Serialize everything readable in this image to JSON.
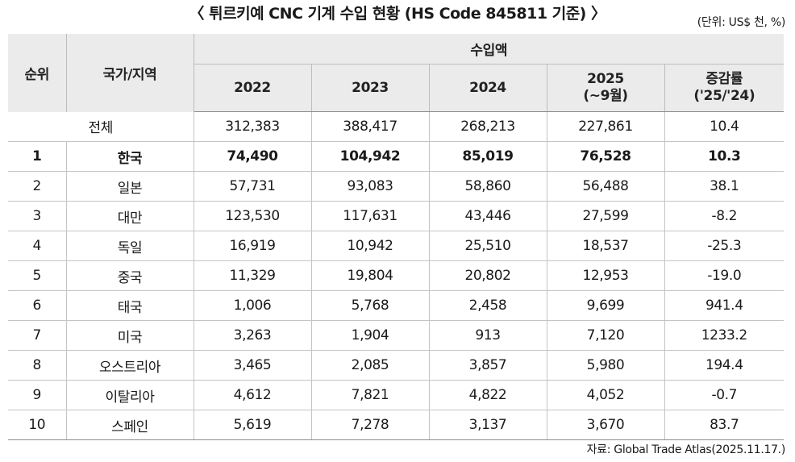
{
  "title": "〈 튀르키예 CNC 기계 수입 현황 (HS Code 845811 기준) 〉",
  "unit": "(단위: US$ 천, %)",
  "headers": {
    "rank": "순위",
    "country": "국가/지역",
    "import_value": "수입액",
    "y2022": "2022",
    "y2023": "2023",
    "y2024": "2024",
    "y2025_line1": "2025",
    "y2025_line2": "(~9월)",
    "growth_line1": "증감률",
    "growth_line2": "('25/'24)"
  },
  "total": {
    "label": "전체",
    "y2022": "312,383",
    "y2023": "388,417",
    "y2024": "268,213",
    "y2025": "227,861",
    "growth": "10.4"
  },
  "rows": [
    {
      "rank": "1",
      "country": "한국",
      "y2022": "74,490",
      "y2023": "104,942",
      "y2024": "85,019",
      "y2025": "76,528",
      "growth": "10.3"
    },
    {
      "rank": "2",
      "country": "일본",
      "y2022": "57,731",
      "y2023": "93,083",
      "y2024": "58,860",
      "y2025": "56,488",
      "growth": "38.1"
    },
    {
      "rank": "3",
      "country": "대만",
      "y2022": "123,530",
      "y2023": "117,631",
      "y2024": "43,446",
      "y2025": "27,599",
      "growth": "-8.2"
    },
    {
      "rank": "4",
      "country": "독일",
      "y2022": "16,919",
      "y2023": "10,942",
      "y2024": "25,510",
      "y2025": "18,537",
      "growth": "-25.3"
    },
    {
      "rank": "5",
      "country": "중국",
      "y2022": "11,329",
      "y2023": "19,804",
      "y2024": "20,802",
      "y2025": "12,953",
      "growth": "-19.0"
    },
    {
      "rank": "6",
      "country": "태국",
      "y2022": "1,006",
      "y2023": "5,768",
      "y2024": "2,458",
      "y2025": "9,699",
      "growth": "941.4"
    },
    {
      "rank": "7",
      "country": "미국",
      "y2022": "3,263",
      "y2023": "1,904",
      "y2024": "913",
      "y2025": "7,120",
      "growth": "1233.2"
    },
    {
      "rank": "8",
      "country": "오스트리아",
      "y2022": "3,465",
      "y2023": "2,085",
      "y2024": "3,857",
      "y2025": "5,980",
      "growth": "194.4"
    },
    {
      "rank": "9",
      "country": "이탈리아",
      "y2022": "4,612",
      "y2023": "7,821",
      "y2024": "4,822",
      "y2025": "4,052",
      "growth": "-0.7"
    },
    {
      "rank": "10",
      "country": "스페인",
      "y2022": "5,619",
      "y2023": "7,278",
      "y2024": "3,137",
      "y2025": "3,670",
      "growth": "83.7"
    }
  ],
  "source": "자료: Global Trade Atlas(2025.11.17.)"
}
